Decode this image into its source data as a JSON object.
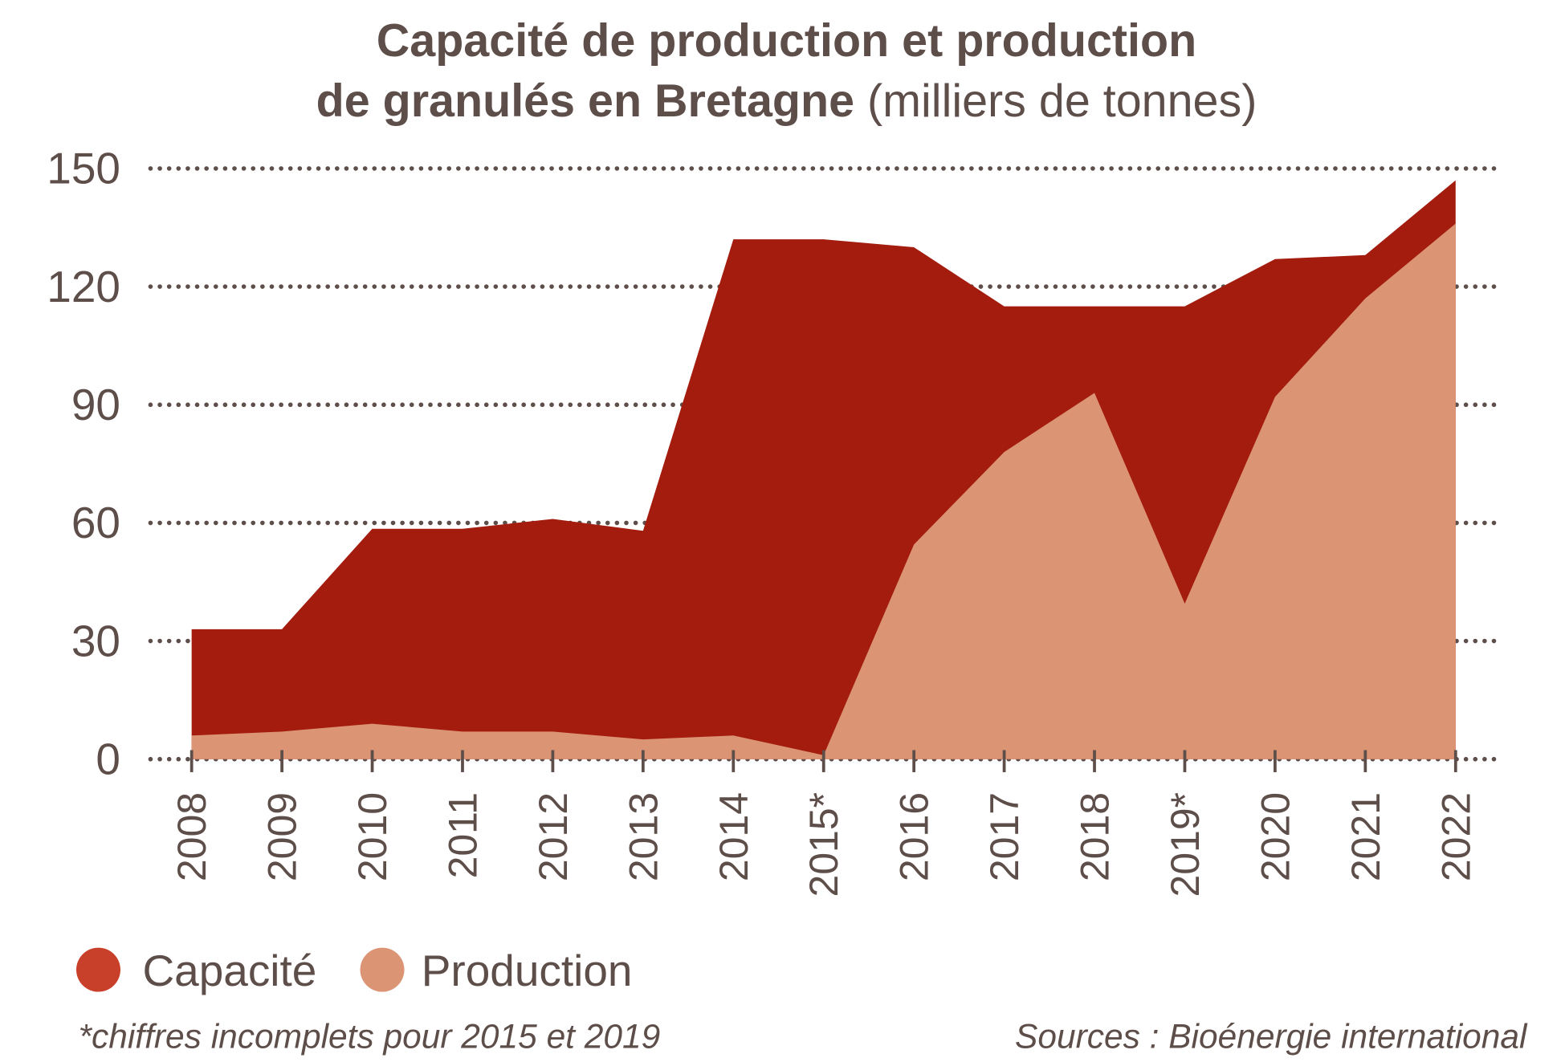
{
  "chart_data": {
    "type": "area",
    "title_bold_line1": "Capacité de production et production",
    "title_bold_line2": "de granulés en Bretagne",
    "title_unit": " (milliers de tonnes)",
    "categories": [
      "2008",
      "2009",
      "2010",
      "2011",
      "2012",
      "2013",
      "2014",
      "2015*",
      "2016",
      "2017",
      "2018",
      "2019*",
      "2020",
      "2021",
      "2022"
    ],
    "series": [
      {
        "name": "Capacité",
        "color": "#A31C0E",
        "legend_color": "#C9402A",
        "values": [
          33,
          33,
          58.5,
          58.5,
          61,
          58,
          132,
          132,
          130,
          115,
          115,
          115,
          127,
          128,
          147
        ]
      },
      {
        "name": "Production",
        "color": "#DB9474",
        "legend_color": "#DB9474",
        "values": [
          6,
          7,
          9,
          7,
          7,
          5,
          6,
          1,
          54.5,
          78,
          93,
          39.5,
          92,
          117,
          136
        ]
      }
    ],
    "ylim": [
      0,
      150
    ],
    "yticks": [
      "0",
      "30",
      "60",
      "90",
      "120",
      "150"
    ],
    "grid": "dotted horizontal",
    "legend_placement": "bottom-left",
    "footnote": "*chiffres incomplets pour 2015 et 2019",
    "source": "Sources : Bioénergie international",
    "text_color": "#5E4E4A"
  }
}
